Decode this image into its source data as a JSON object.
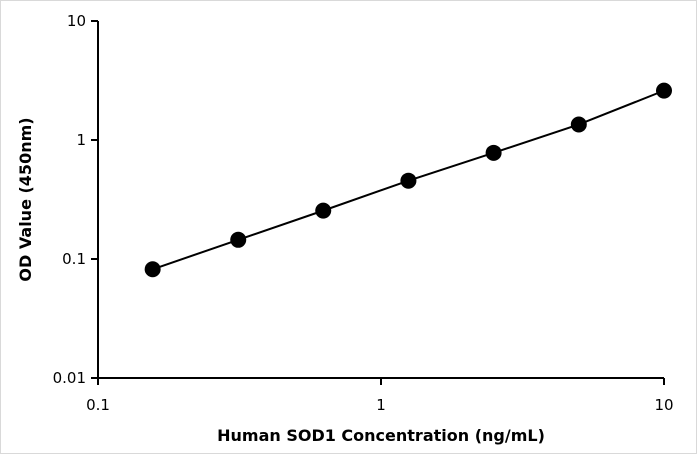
{
  "chart_data": {
    "type": "scatter",
    "title": "",
    "xlabel": "Human SOD1 Concentration (ng/mL)",
    "ylabel": "OD Value (450nm)",
    "x_scale": "log",
    "y_scale": "log",
    "xlim": [
      0.1,
      10
    ],
    "ylim": [
      0.01,
      10
    ],
    "x_ticks": [
      "0.1",
      "1",
      "10"
    ],
    "y_ticks": [
      "0.01",
      "0.1",
      "1",
      "10"
    ],
    "grid": false,
    "legend": "none",
    "series": [
      {
        "x": [
          0.156,
          0.313,
          0.625,
          1.25,
          2.5,
          5,
          10
        ],
        "y": [
          0.082,
          0.145,
          0.255,
          0.455,
          0.78,
          1.35,
          2.6
        ],
        "marker": "circle",
        "line": "fitted-curve"
      }
    ],
    "colors": {
      "marker": "#000000",
      "line": "#000000",
      "axis": "#000000"
    }
  }
}
